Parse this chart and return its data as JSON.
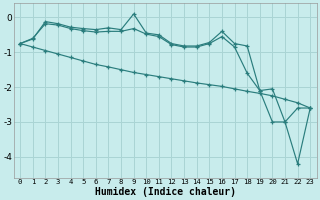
{
  "xlabel": "Humidex (Indice chaleur)",
  "background_color": "#c8ecec",
  "grid_color": "#aad4d4",
  "line_color": "#2a7d7d",
  "xlim": [
    -0.5,
    23.5
  ],
  "ylim": [
    -4.6,
    0.4
  ],
  "yticks": [
    0,
    -1,
    -2,
    -3,
    -4
  ],
  "xticks": [
    0,
    1,
    2,
    3,
    4,
    5,
    6,
    7,
    8,
    9,
    10,
    11,
    12,
    13,
    14,
    15,
    16,
    17,
    18,
    19,
    20,
    21,
    22,
    23
  ],
  "series": [
    {
      "x": [
        0,
        1,
        2,
        3,
        4,
        5,
        6,
        7,
        8,
        9,
        10,
        11,
        12,
        13,
        14,
        15,
        16,
        17,
        18,
        19,
        20,
        21,
        22,
        23
      ],
      "y": [
        -0.75,
        -0.62,
        -0.12,
        -0.18,
        -0.28,
        -0.32,
        -0.35,
        -0.3,
        -0.35,
        0.1,
        -0.45,
        -0.5,
        -0.75,
        -0.82,
        -0.82,
        -0.72,
        -0.4,
        -0.75,
        -0.82,
        -2.1,
        -2.05,
        -3.0,
        -4.2,
        -2.6
      ]
    },
    {
      "x": [
        0,
        1,
        2,
        3,
        4,
        5,
        6,
        7,
        8,
        9,
        10,
        11,
        12,
        13,
        14,
        15,
        16,
        17,
        18,
        19,
        20,
        21,
        22,
        23
      ],
      "y": [
        -0.75,
        -0.6,
        -0.18,
        -0.22,
        -0.32,
        -0.38,
        -0.42,
        -0.4,
        -0.4,
        -0.32,
        -0.48,
        -0.55,
        -0.78,
        -0.85,
        -0.85,
        -0.75,
        -0.55,
        -0.85,
        -1.6,
        -2.1,
        -3.0,
        -3.0,
        -2.6,
        -2.6
      ]
    },
    {
      "x": [
        0,
        1,
        2,
        3,
        4,
        5,
        6,
        7,
        8,
        9,
        10,
        11,
        12,
        13,
        14,
        15,
        16,
        17,
        18,
        19,
        20,
        21,
        22,
        23
      ],
      "y": [
        -0.75,
        -0.85,
        -0.95,
        -1.05,
        -1.15,
        -1.25,
        -1.35,
        -1.42,
        -1.5,
        -1.58,
        -1.64,
        -1.7,
        -1.76,
        -1.82,
        -1.88,
        -1.93,
        -1.98,
        -2.05,
        -2.12,
        -2.18,
        -2.25,
        -2.35,
        -2.45,
        -2.6
      ]
    }
  ]
}
